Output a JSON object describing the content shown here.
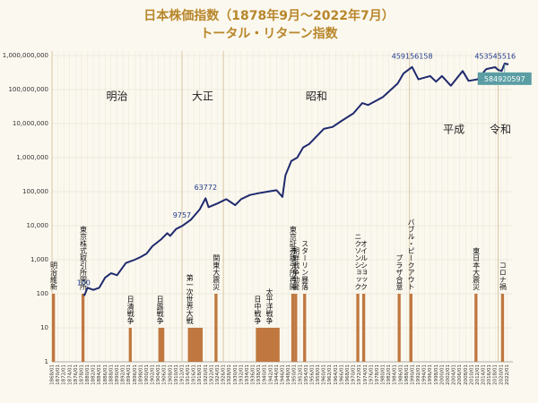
{
  "chart_data": {
    "type": "line",
    "title": "日本株価指数（1878年9月～2022年7月）",
    "subtitle": "トータル・リターン指数",
    "log_scale": true,
    "grid": true,
    "ylim": [
      1,
      1000000000
    ],
    "yticks": [
      1,
      10,
      100,
      {
        "value": 1000,
        "label": "1,000"
      },
      {
        "value": 10000,
        "label": "10,000"
      },
      {
        "value": 100000,
        "label": "100,000"
      },
      {
        "value": 1000000,
        "label": "1,000,000"
      },
      {
        "value": 10000000,
        "label": "10,000,000"
      },
      {
        "value": 100000000,
        "label": "100,000,000"
      },
      {
        "value": 1000000000,
        "label": "1,000,000,000"
      }
    ],
    "xlim": [
      1868,
      2024
    ],
    "xticks": [
      {
        "value": 1868,
        "label": "1868/01"
      },
      {
        "value": 1870,
        "label": "1870/01"
      },
      {
        "value": 1872,
        "label": "1872/01"
      },
      {
        "value": 1874,
        "label": "1874/01"
      },
      {
        "value": 1876,
        "label": "1876/01"
      },
      {
        "value": 1878,
        "label": "1878/01"
      },
      {
        "value": 1880,
        "label": "1880/01"
      },
      {
        "value": 1882,
        "label": "1882/01"
      },
      {
        "value": 1884,
        "label": "1884/01"
      },
      {
        "value": 1886,
        "label": "1886/01"
      },
      {
        "value": 1888,
        "label": "1888/01"
      },
      {
        "value": 1890,
        "label": "1890/01"
      },
      {
        "value": 1892,
        "label": "1892/01"
      },
      {
        "value": 1894,
        "label": "1894/01"
      },
      {
        "value": 1896,
        "label": "1896/01"
      },
      {
        "value": 1898,
        "label": "1898/01"
      },
      {
        "value": 1900,
        "label": "1900/01"
      },
      {
        "value": 1902,
        "label": "1902/01"
      },
      {
        "value": 1904,
        "label": "1904/01"
      },
      {
        "value": 1906,
        "label": "1906/01"
      },
      {
        "value": 1908,
        "label": "1908/01"
      },
      {
        "value": 1910,
        "label": "1910/01"
      },
      {
        "value": 1912,
        "label": "1912/01"
      },
      {
        "value": 1914,
        "label": "1914/01"
      },
      {
        "value": 1916,
        "label": "1916/01"
      },
      {
        "value": 1918,
        "label": "1918/01"
      },
      {
        "value": 1920,
        "label": "1920/01"
      },
      {
        "value": 1922,
        "label": "1922/01"
      },
      {
        "value": 1924,
        "label": "1924/01"
      },
      {
        "value": 1926,
        "label": "1926/01"
      },
      {
        "value": 1928,
        "label": "1928/01"
      },
      {
        "value": 1930,
        "label": "1930/01"
      },
      {
        "value": 1932,
        "label": "1932/01"
      },
      {
        "value": 1934,
        "label": "1934/01"
      },
      {
        "value": 1936,
        "label": "1936/01"
      },
      {
        "value": 1938,
        "label": "1938/01"
      },
      {
        "value": 1940,
        "label": "1940/01"
      },
      {
        "value": 1942,
        "label": "1942/01"
      },
      {
        "value": 1944,
        "label": "1944/01"
      },
      {
        "value": 1946,
        "label": "1946/01"
      },
      {
        "value": 1948,
        "label": "1948/01"
      },
      {
        "value": 1950,
        "label": "1950/01"
      },
      {
        "value": 1952,
        "label": "1952/01"
      },
      {
        "value": 1954,
        "label": "1954/01"
      },
      {
        "value": 1956,
        "label": "1956/01"
      },
      {
        "value": 1958,
        "label": "1958/01"
      },
      {
        "value": 1960,
        "label": "1960/01"
      },
      {
        "value": 1962,
        "label": "1962/01"
      },
      {
        "value": 1964,
        "label": "1964/01"
      },
      {
        "value": 1966,
        "label": "1966/01"
      },
      {
        "value": 1968,
        "label": "1968/01"
      },
      {
        "value": 1970,
        "label": "1970/01"
      },
      {
        "value": 1972,
        "label": "1972/01"
      },
      {
        "value": 1974,
        "label": "1974/01"
      },
      {
        "value": 1976,
        "label": "1976/01"
      },
      {
        "value": 1978,
        "label": "1978/01"
      },
      {
        "value": 1980,
        "label": "1980/01"
      },
      {
        "value": 1982,
        "label": "1982/01"
      },
      {
        "value": 1984,
        "label": "1984/01"
      },
      {
        "value": 1986,
        "label": "1986/01"
      },
      {
        "value": 1988,
        "label": "1988/01"
      },
      {
        "value": 1990,
        "label": "1990/01"
      },
      {
        "value": 1992,
        "label": "1992/01"
      },
      {
        "value": 1994,
        "label": "1994/01"
      },
      {
        "value": 1996,
        "label": "1996/01"
      },
      {
        "value": 1998,
        "label": "1998/01"
      },
      {
        "value": 2000,
        "label": "2000/01"
      },
      {
        "value": 2002,
        "label": "2002/01"
      },
      {
        "value": 2004,
        "label": "2004/01"
      },
      {
        "value": 2006,
        "label": "2006/01"
      },
      {
        "value": 2008,
        "label": "2008/01"
      },
      {
        "value": 2010,
        "label": "2010/01"
      },
      {
        "value": 2012,
        "label": "2012/01"
      },
      {
        "value": 2014,
        "label": "2014/01"
      },
      {
        "value": 2016,
        "label": "2016/01"
      },
      {
        "value": 2018,
        "label": "2018/01"
      },
      {
        "value": 2020,
        "label": "2020/01"
      },
      {
        "value": 2022,
        "label": "2022/01"
      }
    ],
    "series": [
      {
        "color": "#1f2a6e",
        "x": [
          1878.7,
          1879,
          1880,
          1882,
          1884,
          1886,
          1888,
          1890,
          1893,
          1896,
          1898,
          1900,
          1902,
          1905,
          1907,
          1908,
          1910,
          1912,
          1915,
          1918,
          1920,
          1921,
          1924,
          1927,
          1930,
          1932,
          1935,
          1938,
          1941,
          1944,
          1946,
          1947,
          1949,
          1951,
          1953,
          1955,
          1960,
          1963,
          1966,
          1970,
          1973,
          1975,
          1980,
          1985,
          1987,
          1989.9,
          1992,
          1996,
          1998,
          2000,
          2003,
          2007,
          2009,
          2012,
          2015,
          2018,
          2019,
          2020.2,
          2021.2,
          2022.5
        ],
        "values": [
          100,
          90,
          150,
          130,
          150,
          300,
          400,
          350,
          800,
          1000,
          1200,
          1500,
          2500,
          4000,
          6000,
          5000,
          8000,
          9757,
          15000,
          30000,
          63772,
          35000,
          45000,
          60000,
          40000,
          60000,
          80000,
          90000,
          100000,
          110000,
          70000,
          300000,
          800000,
          1000000,
          2000000,
          2500000,
          7000000,
          8000000,
          12000000,
          20000000,
          40000000,
          35000000,
          60000000,
          150000000,
          300000000,
          459156158,
          200000000,
          250000000,
          170000000,
          250000000,
          130000000,
          350000000,
          180000000,
          200000000,
          400000000,
          453545516,
          380000000,
          350000000,
          584920597,
          550000000
        ]
      }
    ],
    "point_labels": [
      {
        "x": 1878.7,
        "value": 100
      },
      {
        "x": 1912,
        "value": 9757
      },
      {
        "x": 1920,
        "value": 63772
      },
      {
        "x": 1989.9,
        "value": 459156158
      },
      {
        "x": 2018,
        "value": 453545516
      },
      {
        "x": 2021.2,
        "value": 584920597,
        "boxed": true,
        "box_color": "#5a9ea4"
      }
    ],
    "eras": [
      {
        "label": "明治",
        "start": 1868
      },
      {
        "label": "大正",
        "start": 1912
      },
      {
        "label": "昭和",
        "start": 1926
      },
      {
        "label": "平成",
        "start": 1989
      },
      {
        "label": "令和",
        "start": 2019
      }
    ],
    "events_color": "#c07840",
    "events": [
      {
        "label": "明治維新",
        "start": 1868,
        "end": 1869,
        "value": 100
      },
      {
        "label": "東京株式取引所開所",
        "start": 1878,
        "end": 1879,
        "value": 100
      },
      {
        "label": "日清戦争",
        "start": 1894,
        "end": 1895,
        "value": 10
      },
      {
        "label": "日露戦争",
        "start": 1904,
        "end": 1906,
        "value": 10
      },
      {
        "label": "第一次世界大戦",
        "start": 1914,
        "end": 1919,
        "value": 10
      },
      {
        "label": "関東大震災",
        "start": 1923,
        "end": 1924,
        "value": 100
      },
      {
        "label": "日中戦争",
        "start": 1937,
        "end": 1945,
        "value": 10
      },
      {
        "label": "太平洋戦争",
        "start": 1941,
        "end": 1945,
        "value": 10
      },
      {
        "label": "東京証券取引所再開",
        "start": 1949,
        "end": 1950,
        "value": 100
      },
      {
        "label": "朝鮮戦争勃発",
        "start": 1950,
        "end": 1951,
        "value": 100
      },
      {
        "label": "スターリン暴落",
        "start": 1953,
        "end": 1954,
        "value": 100
      },
      {
        "label": "ニクソンショック",
        "start": 1971,
        "end": 1972,
        "value": 100
      },
      {
        "label": "オイルショック",
        "start": 1973,
        "end": 1974,
        "value": 100
      },
      {
        "label": "プラザ合意",
        "start": 1985,
        "end": 1986,
        "value": 100
      },
      {
        "label": "バブル・ピークアウト",
        "start": 1989,
        "end": 1990,
        "value": 100
      },
      {
        "label": "東日本大震災",
        "start": 2011,
        "end": 2012,
        "value": 100
      },
      {
        "label": "コロナ禍",
        "start": 2020,
        "end": 2021,
        "value": 100
      }
    ]
  }
}
